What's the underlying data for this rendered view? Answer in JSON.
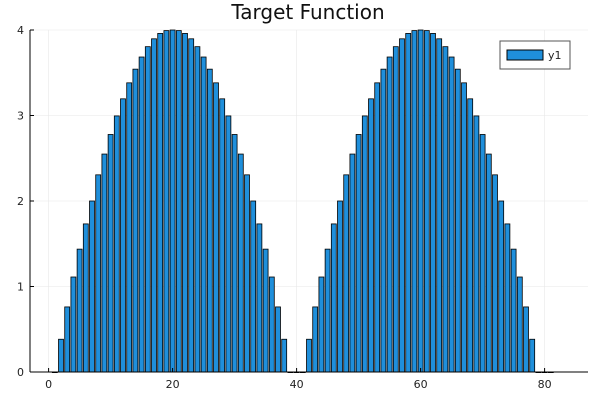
{
  "chart_data": {
    "type": "bar",
    "title": "Target Function",
    "xlabel": "",
    "ylabel": "",
    "xlim": [
      -3,
      87
    ],
    "ylim": [
      0,
      4
    ],
    "xticks": [
      0,
      20,
      40,
      60,
      80
    ],
    "yticks": [
      0,
      1,
      2,
      3,
      4
    ],
    "grid": true,
    "legend_position": "top-right",
    "bar_color": "#1f8fdb",
    "series": [
      {
        "name": "y1",
        "x": [
          1,
          2,
          3,
          4,
          5,
          6,
          7,
          8,
          9,
          10,
          11,
          12,
          13,
          14,
          15,
          16,
          17,
          18,
          19,
          20,
          21,
          22,
          23,
          24,
          25,
          26,
          27,
          28,
          29,
          30,
          31,
          32,
          33,
          34,
          35,
          36,
          37,
          38,
          39,
          40,
          41,
          42,
          43,
          44,
          45,
          46,
          47,
          48,
          49,
          50,
          51,
          52,
          53,
          54,
          55,
          56,
          57,
          58,
          59,
          60,
          61,
          62,
          63,
          64,
          65,
          66,
          67,
          68,
          69,
          70,
          71,
          72,
          73,
          74,
          75,
          76,
          77,
          78,
          79,
          80,
          81
        ],
        "values": [
          0.0,
          0.383,
          0.761,
          1.111,
          1.437,
          1.732,
          2.0,
          2.306,
          2.549,
          2.778,
          2.995,
          3.195,
          3.382,
          3.542,
          3.684,
          3.805,
          3.897,
          3.96,
          3.993,
          4.0,
          3.993,
          3.96,
          3.897,
          3.805,
          3.684,
          3.542,
          3.382,
          3.195,
          2.995,
          2.778,
          2.549,
          2.306,
          2.0,
          1.732,
          1.437,
          1.111,
          0.761,
          0.383,
          0.0,
          0.0,
          0.0,
          0.383,
          0.761,
          1.111,
          1.437,
          1.732,
          2.0,
          2.306,
          2.549,
          2.778,
          2.995,
          3.195,
          3.382,
          3.542,
          3.684,
          3.805,
          3.897,
          3.96,
          3.993,
          4.0,
          3.993,
          3.96,
          3.897,
          3.805,
          3.684,
          3.542,
          3.382,
          3.195,
          2.995,
          2.778,
          2.549,
          2.306,
          2.0,
          1.732,
          1.437,
          1.111,
          0.761,
          0.383,
          0.0,
          0.0,
          0.0
        ]
      }
    ]
  }
}
